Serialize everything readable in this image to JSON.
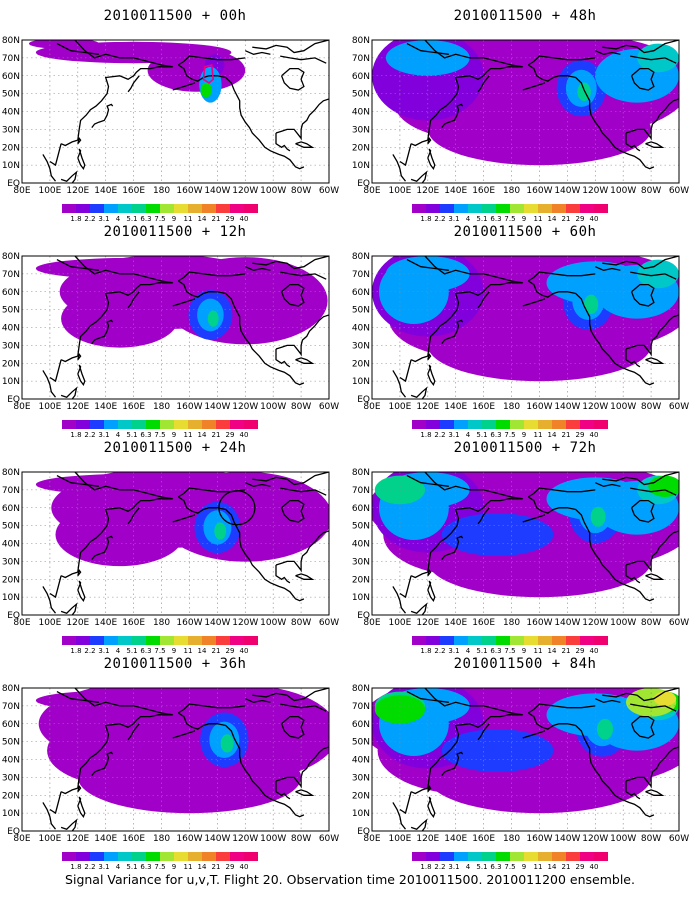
{
  "caption": "Signal Variance for u,v,T. Flight 20. Observation time 2010011500. 2010011200 ensemble.",
  "lat_labels": [
    "80N",
    "70N",
    "60N",
    "50N",
    "40N",
    "30N",
    "20N",
    "10N",
    "EQ"
  ],
  "lon_labels": [
    "80E",
    "100E",
    "120E",
    "140E",
    "160E",
    "180",
    "160W",
    "140W",
    "120W",
    "100W",
    "80W",
    "60W"
  ],
  "colorbar": {
    "labels": [
      "1.8",
      "2.2",
      "3.1",
      "4",
      "5.1",
      "6.3",
      "7.5",
      "9",
      "11",
      "14",
      "21",
      "29",
      "40"
    ],
    "colors": [
      "#a000c8",
      "#8200dc",
      "#1e3cff",
      "#00a0ff",
      "#00c8c8",
      "#00d28c",
      "#00dc00",
      "#a0e632",
      "#e6dc32",
      "#e6af2d",
      "#f08228",
      "#fa3c3c",
      "#f00082"
    ]
  },
  "panels": [
    {
      "id": "p00",
      "title": "2010011500 + 00h",
      "intensity": 0.15,
      "circle": false,
      "outline": true
    },
    {
      "id": "p12",
      "title": "2010011500 + 12h",
      "intensity": 0.3,
      "circle": false,
      "outline": false
    },
    {
      "id": "p24",
      "title": "2010011500 + 24h",
      "intensity": 0.4,
      "circle": true,
      "outline": false
    },
    {
      "id": "p36",
      "title": "2010011500 + 36h",
      "intensity": 0.55,
      "circle": false,
      "outline": false
    },
    {
      "id": "p48",
      "title": "2010011500 + 48h",
      "intensity": 0.6,
      "circle": false,
      "outline": false
    },
    {
      "id": "p60",
      "title": "2010011500 + 60h",
      "intensity": 0.7,
      "circle": false,
      "outline": false
    },
    {
      "id": "p72",
      "title": "2010011500 + 72h",
      "intensity": 0.8,
      "circle": false,
      "outline": false
    },
    {
      "id": "p84",
      "title": "2010011500 + 84h",
      "intensity": 0.9,
      "circle": false,
      "outline": false
    }
  ]
}
